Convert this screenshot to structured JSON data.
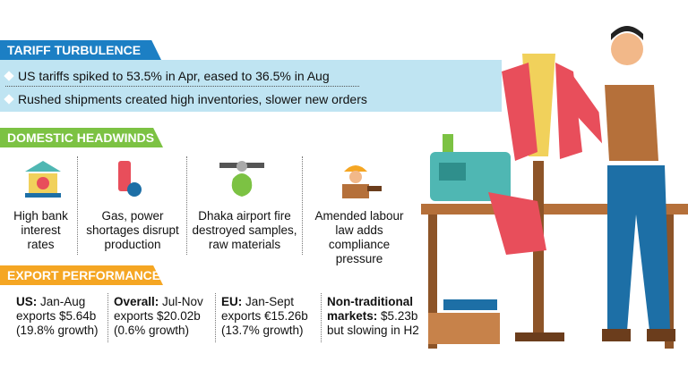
{
  "tariff": {
    "title": "TARIFF TURBULENCE",
    "bullets": [
      "US tariffs spiked to 53.5% in Apr, eased to 36.5% in Aug",
      "Rushed shipments created high inventories, slower new orders"
    ]
  },
  "domestic": {
    "title": "DOMESTIC HEADWINDS",
    "items": [
      "High bank interest rates",
      "Gas, power shortages disrupt production",
      "Dhaka airport fire destroyed samples, raw materials",
      "Amended labour law adds compliance pressure"
    ]
  },
  "export": {
    "title": "EXPORT PERFORMANCE",
    "items": [
      {
        "lead": "US:",
        "text": "Jan-Aug exports $5.64b (19.8% growth)"
      },
      {
        "lead": "Overall:",
        "text": "Jul-Nov exports $20.02b (0.6% growth)"
      },
      {
        "lead": "EU:",
        "text": "Jan-Sept exports €15.26b (13.7% growth)"
      },
      {
        "lead": "Non-traditional markets:",
        "text": "$5.23b but slowing in H2"
      }
    ]
  }
}
